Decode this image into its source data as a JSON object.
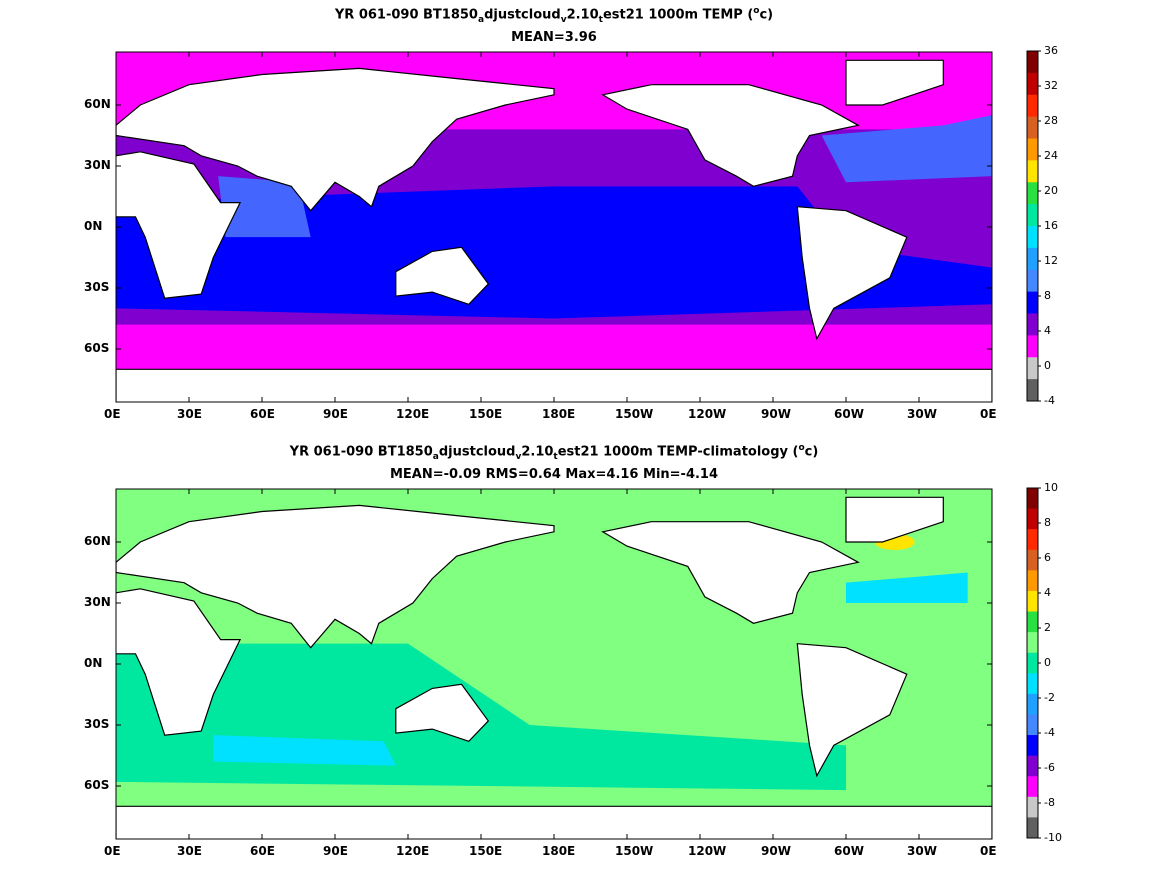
{
  "panels": [
    {
      "title_parts": [
        "YR 061-090 BT1850",
        "a",
        "djustcloud",
        "v",
        "2.10",
        "t",
        "est21 1000m TEMP (",
        "o",
        "c)"
      ],
      "subtitle": "MEAN=3.96",
      "colorbar": {
        "labels": [
          "36",
          "32",
          "28",
          "24",
          "20",
          "16",
          "12",
          "8",
          "4",
          "0",
          "-4"
        ],
        "colors": [
          "#800000",
          "#c00000",
          "#ff2a00",
          "#d86020",
          "#ff9900",
          "#ffe400",
          "#28e040",
          "#00e8a0",
          "#00e0ff",
          "#20a0ff",
          "#4488ff",
          "#0000ff",
          "#8000d0",
          "#ff00ff",
          "#c8c8c8",
          "#606060"
        ]
      }
    },
    {
      "title_parts": [
        "YR 061-090 BT1850",
        "a",
        "djustcloud",
        "v",
        "2.10",
        "t",
        "est21 1000m TEMP-climatology (",
        "o",
        "c)"
      ],
      "subtitle": "MEAN=-0.09   RMS=0.64   Max=4.16   Min=-4.14",
      "colorbar": {
        "labels": [
          "10",
          "8",
          "6",
          "4",
          "2",
          "0",
          "-2",
          "-4",
          "-6",
          "-8",
          "-10"
        ],
        "colors": [
          "#800000",
          "#c00000",
          "#ff2a00",
          "#d86020",
          "#ff9900",
          "#ffe400",
          "#28e040",
          "#80ff80",
          "#00e8a0",
          "#00e0ff",
          "#20a0ff",
          "#4488ff",
          "#0000ff",
          "#8000d0",
          "#ff00ff",
          "#c8c8c8",
          "#606060"
        ]
      }
    }
  ],
  "x_ticks": [
    "0E",
    "30E",
    "60E",
    "90E",
    "120E",
    "150E",
    "180E",
    "150W",
    "120W",
    "90W",
    "60W",
    "30W",
    "0E"
  ],
  "y_ticks": [
    "60N",
    "30N",
    "0N",
    "30S",
    "60S"
  ],
  "field_colors": {
    "land": "#ffffff",
    "coast": "#000000",
    "p1_polar": "#ff00ff",
    "p1_subpolar": "#8000d0",
    "p1_deep": "#0000ff",
    "p1_mid": "#4466ff",
    "p1_nadw": "#20a0ff",
    "p2_base": "#80ff80",
    "p2_neg": "#00e8a0",
    "p2_cold": "#00e0ff",
    "p2_warm": "#ffe400"
  }
}
